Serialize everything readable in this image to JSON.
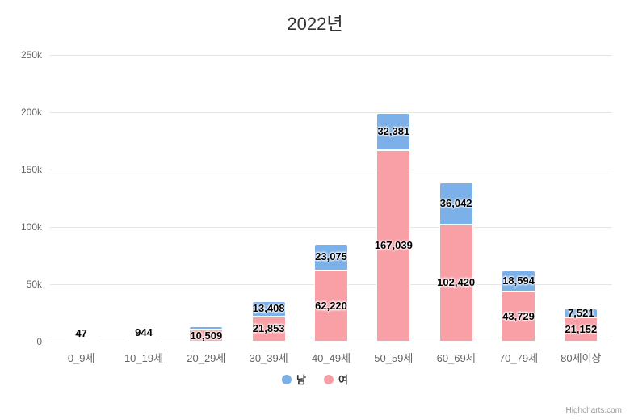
{
  "title": "2022년",
  "credits": "Highcharts.com",
  "chart_data": {
    "type": "bar",
    "stacked": true,
    "title": "2022년",
    "categories": [
      "0_9세",
      "10_19세",
      "20_29세",
      "30_39세",
      "40_49세",
      "50_59세",
      "60_69세",
      "70_79세",
      "80세이상"
    ],
    "series": [
      {
        "name": "남",
        "color": "#7CB0E9",
        "values": [
          0,
          0,
          2600,
          13408,
          23075,
          32381,
          36042,
          18594,
          7521
        ],
        "labels": [
          null,
          null,
          null,
          "13,408",
          "23,075",
          "32,381",
          "36,042",
          "18,594",
          "7,521"
        ]
      },
      {
        "name": "여",
        "color": "#F9A0A7",
        "values": [
          47,
          944,
          10509,
          21853,
          62220,
          167039,
          102420,
          43729,
          21152
        ],
        "labels": [
          "47",
          "944",
          "10,509",
          "21,853",
          "62,220",
          "167,039",
          "102,420",
          "43,729",
          "21,152"
        ]
      }
    ],
    "ylim": [
      0,
      250000
    ],
    "yticks": [
      "0",
      "50k",
      "100k",
      "150k",
      "200k",
      "250k"
    ],
    "xlabel": "",
    "ylabel": "",
    "grid": true,
    "legend_position": "bottom"
  }
}
